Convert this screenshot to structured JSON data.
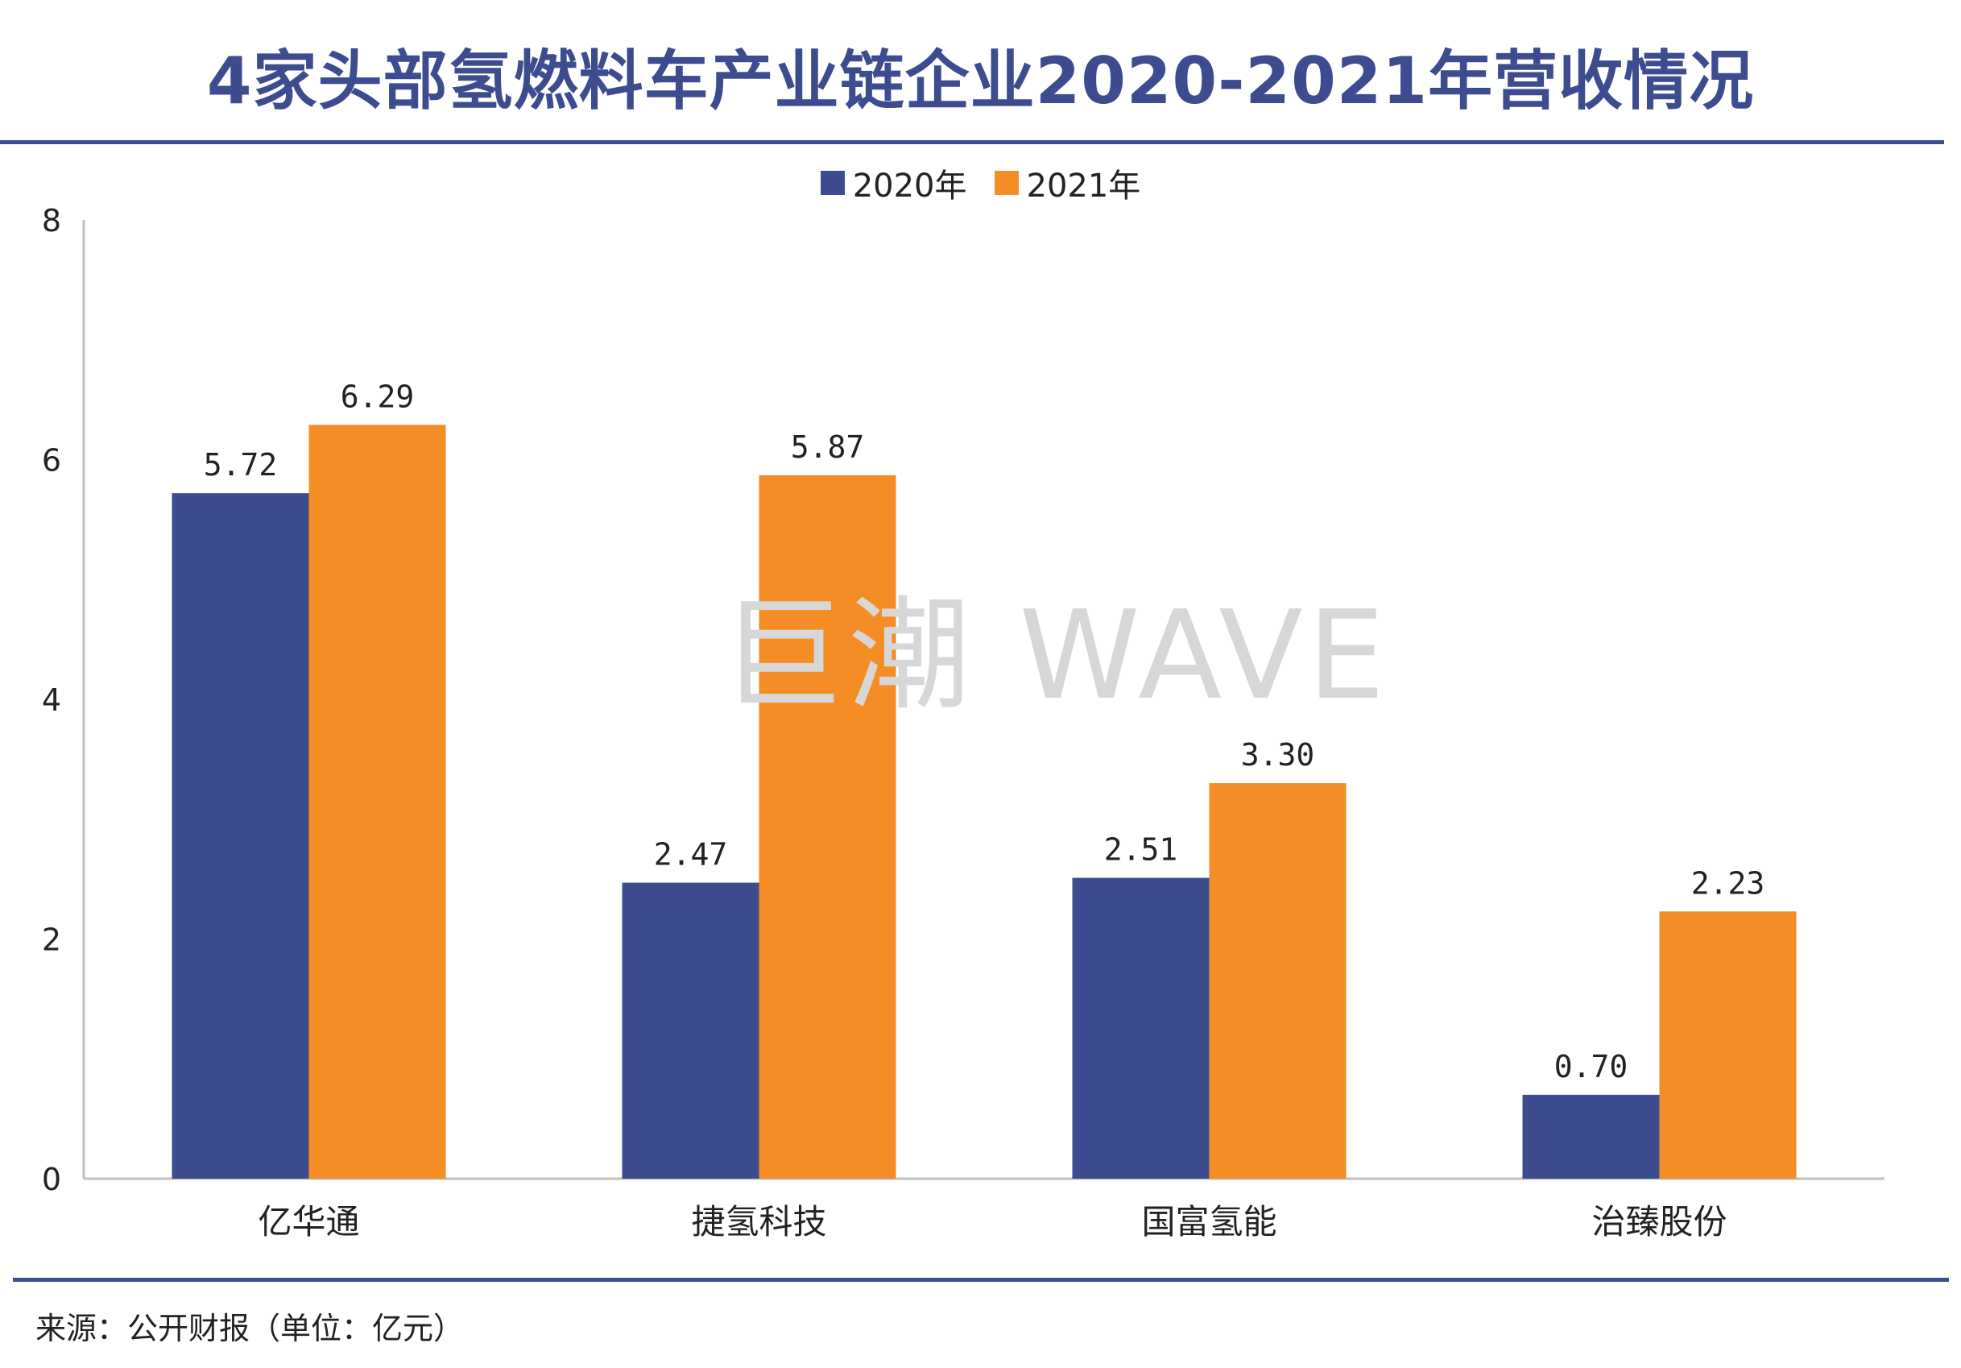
{
  "header": {
    "title": "4家头部氢燃料车产业链企业2020-2021年营收情况"
  },
  "footer": {
    "source": "来源：公开财报（单位：亿元）"
  },
  "watermark": "巨潮 WAVE",
  "colors": {
    "series_2020": "#3d4c8f",
    "series_2021": "#f58d26",
    "rule": "#3d4c8f",
    "axis": "#bfbfbf"
  },
  "chart_data": {
    "type": "bar",
    "title": "4家头部氢燃料车产业链企业2020-2021年营收情况",
    "xlabel": "",
    "ylabel": "",
    "ylim": [
      0,
      8
    ],
    "yticks": [
      "0",
      "2",
      "4",
      "6",
      "8"
    ],
    "categories": [
      "亿华通",
      "捷氢科技",
      "国富氢能",
      "治臻股份"
    ],
    "series": [
      {
        "name": "2020年",
        "values": [
          5.72,
          2.47,
          2.51,
          0.7
        ],
        "labels": [
          "5.72",
          "2.47",
          "2.51",
          "0.70"
        ]
      },
      {
        "name": "2021年",
        "values": [
          6.29,
          5.87,
          3.3,
          2.23
        ],
        "labels": [
          "6.29",
          "5.87",
          "3.30",
          "2.23"
        ]
      }
    ],
    "legend_position": "top-center",
    "grid": false
  }
}
